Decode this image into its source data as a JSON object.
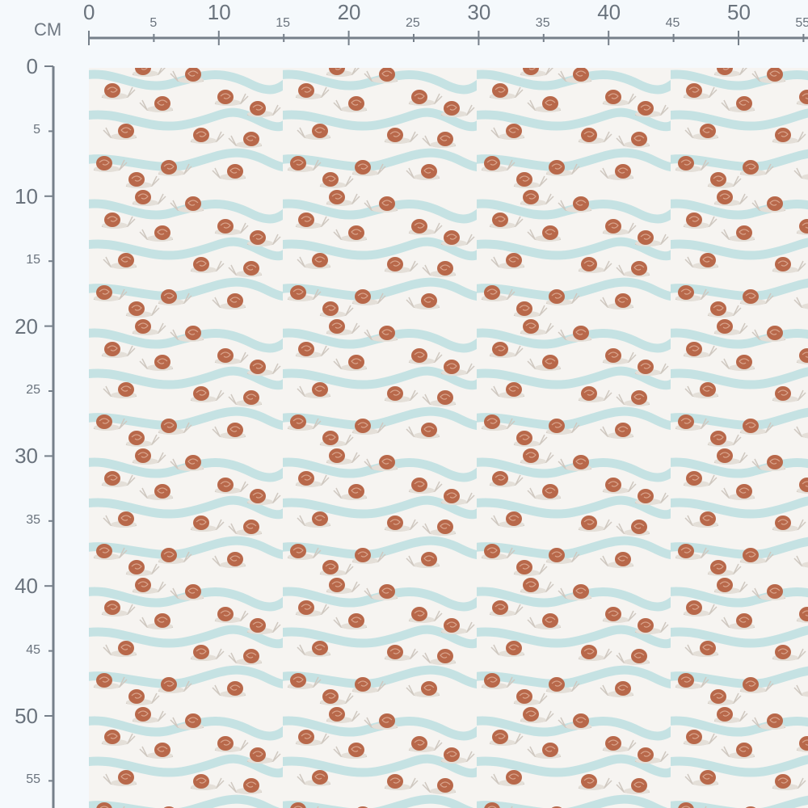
{
  "ruler": {
    "unit": "CM",
    "top_labels": [
      "0",
      "5",
      "10",
      "15",
      "20",
      "25",
      "30",
      "35",
      "40",
      "45",
      "50",
      "55"
    ],
    "left_labels": [
      "0",
      "5",
      "10",
      "15",
      "20",
      "25",
      "30",
      "35",
      "40",
      "45",
      "50",
      "55"
    ]
  },
  "fabric": {
    "pattern": "snails-on-wavy-trails",
    "colors": {
      "background": "#f6f4f1",
      "trail": "#b9dde0",
      "shell": "#b8684a",
      "body": "#e4dfd8",
      "ruler": "#76808a"
    }
  }
}
